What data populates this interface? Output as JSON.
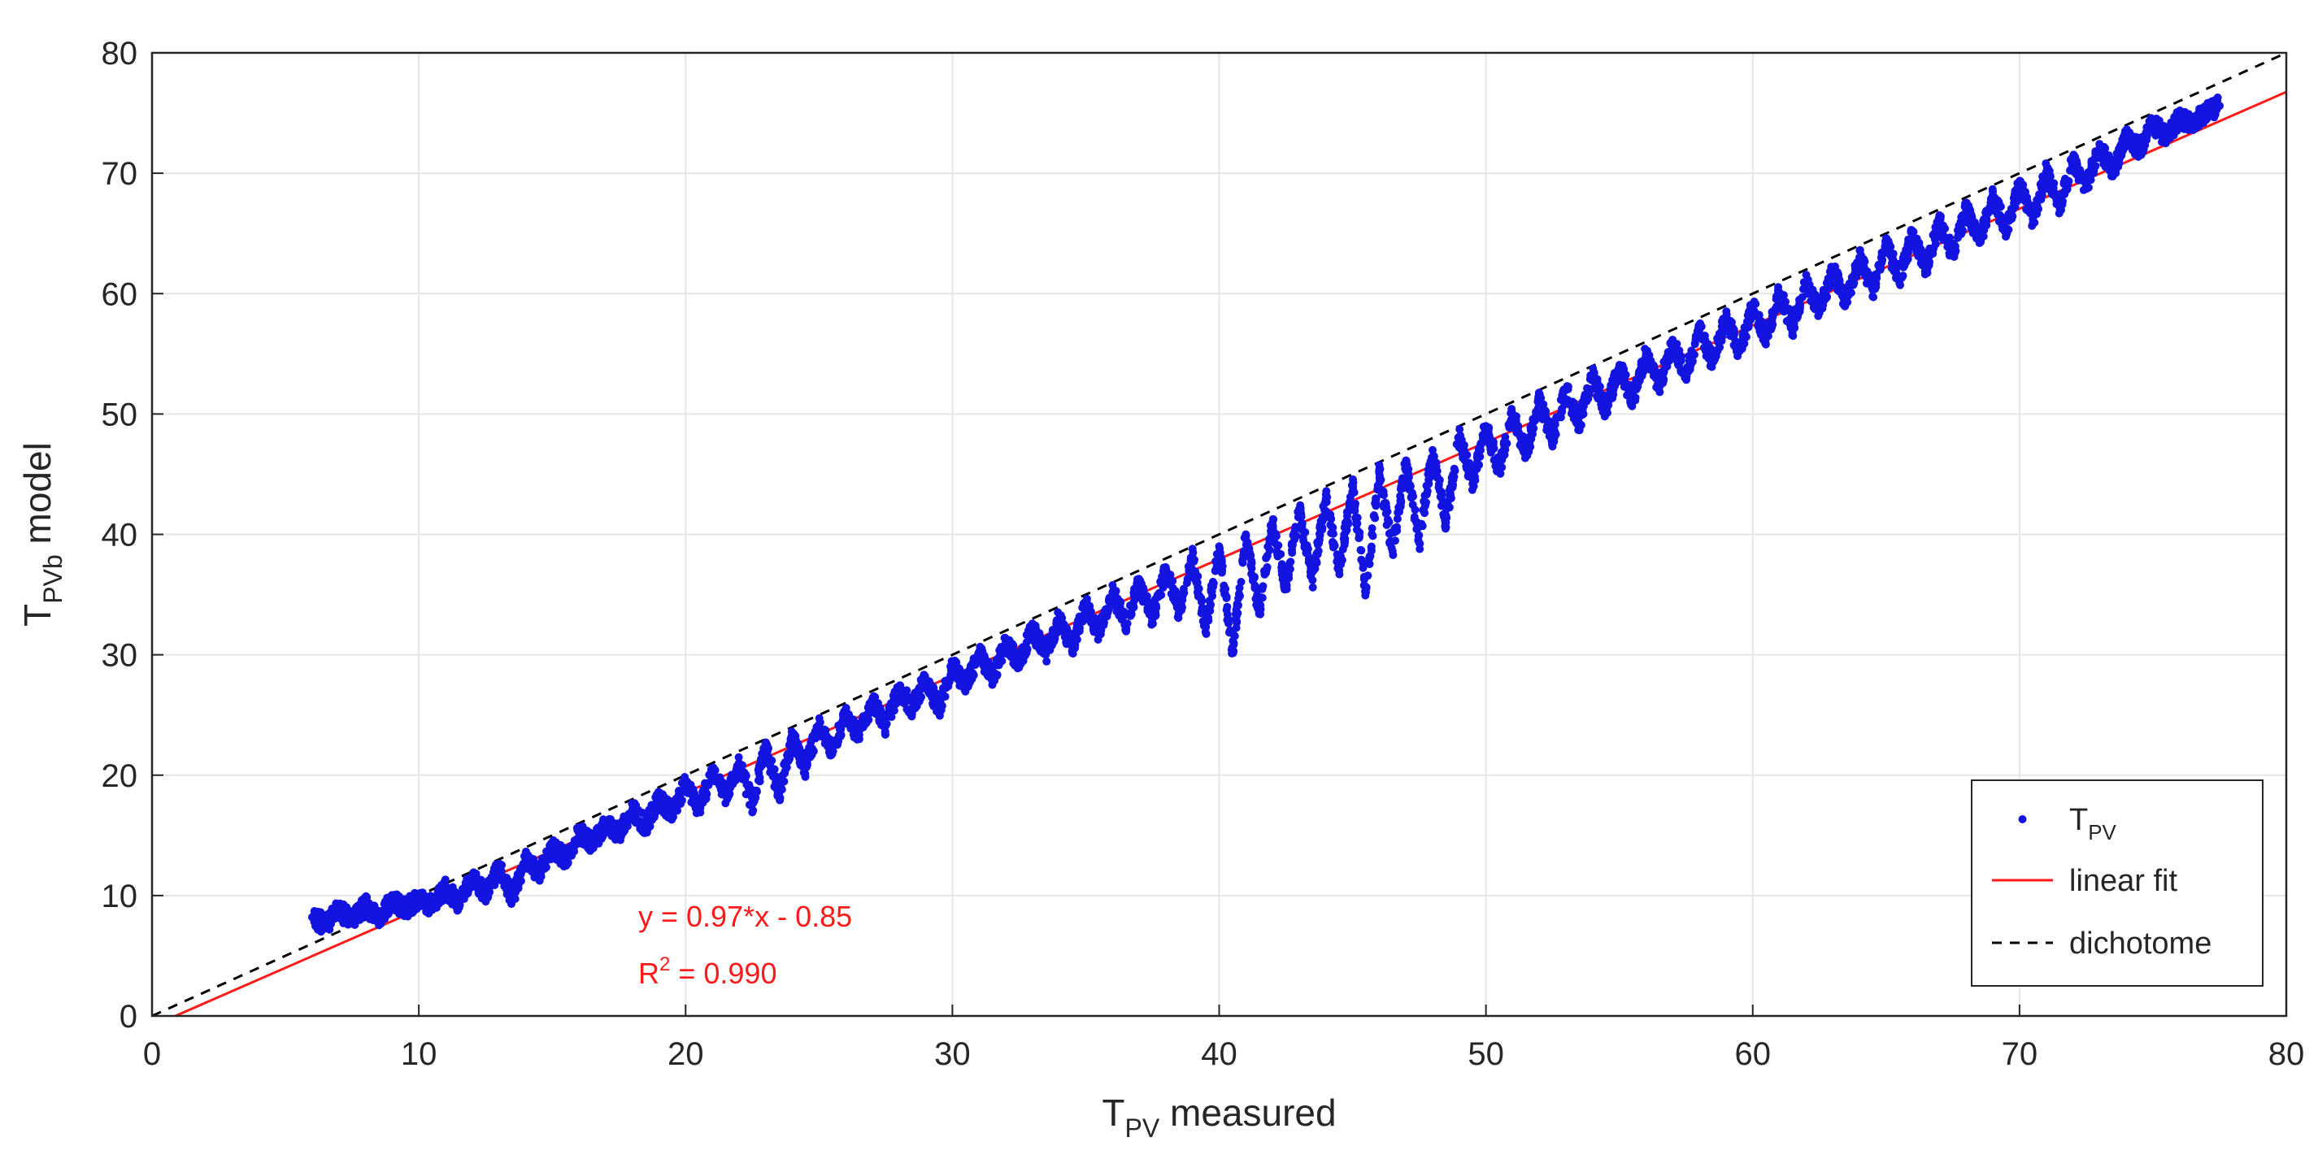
{
  "chart_data": {
    "type": "scatter",
    "xlabel": {
      "main": "T",
      "sub": "PV",
      "rest": " measured"
    },
    "ylabel": {
      "main": "T",
      "sub": "PVb",
      "rest": " model"
    },
    "xlim": [
      0,
      80
    ],
    "ylim": [
      0,
      80
    ],
    "xticks": [
      "0",
      "10",
      "20",
      "30",
      "40",
      "50",
      "60",
      "70",
      "80"
    ],
    "yticks": [
      "0",
      "10",
      "20",
      "30",
      "40",
      "50",
      "60",
      "70",
      "80"
    ],
    "grid": true,
    "legend_position": "bottom-right",
    "legend": [
      {
        "main": "T",
        "sub": "PV",
        "style": "marker"
      },
      {
        "main": "linear fit",
        "style": "solid"
      },
      {
        "main": "dichotome",
        "style": "dashed"
      }
    ],
    "annotations": {
      "equation": "y = 0.97*x - 0.85",
      "r2_prefix": "R",
      "r2_sup": "2",
      "r2_value": " = 0.990"
    },
    "fit": {
      "slope": 0.97,
      "intercept": -0.85,
      "r2": 0.99
    },
    "dichotome": {
      "slope": 1,
      "intercept": 0
    },
    "series": [
      {
        "name": "T_PV",
        "type": "scatter",
        "points": [
          [
            6.0,
            8.2
          ],
          [
            6.5,
            7.6
          ],
          [
            7.0,
            8.8
          ],
          [
            7.5,
            7.9
          ],
          [
            8.0,
            9.2
          ],
          [
            8.5,
            8.1
          ],
          [
            9.0,
            9.6
          ],
          [
            9.5,
            8.9
          ],
          [
            10.0,
            9.8
          ],
          [
            10.5,
            9.1
          ],
          [
            11.0,
            10.6
          ],
          [
            11.5,
            9.4
          ],
          [
            12.0,
            11.6
          ],
          [
            12.5,
            10.2
          ],
          [
            13.0,
            12.3
          ],
          [
            13.5,
            9.8
          ],
          [
            14.0,
            13.0
          ],
          [
            14.5,
            11.8
          ],
          [
            15.0,
            14.0
          ],
          [
            15.5,
            13.1
          ],
          [
            16.0,
            15.2
          ],
          [
            16.5,
            14.3
          ],
          [
            17.0,
            16.0
          ],
          [
            17.5,
            15.2
          ],
          [
            18.0,
            17.1
          ],
          [
            18.5,
            15.8
          ],
          [
            19.0,
            18.0
          ],
          [
            19.5,
            16.9
          ],
          [
            20.0,
            19.3
          ],
          [
            20.5,
            17.2
          ],
          [
            21.0,
            20.2
          ],
          [
            21.5,
            18.3
          ],
          [
            22.0,
            21.0
          ],
          [
            22.5,
            17.6
          ],
          [
            23.0,
            22.3
          ],
          [
            23.5,
            18.4
          ],
          [
            24.0,
            23.1
          ],
          [
            24.5,
            20.6
          ],
          [
            25.0,
            24.2
          ],
          [
            25.5,
            22.0
          ],
          [
            26.0,
            25.0
          ],
          [
            26.5,
            23.3
          ],
          [
            27.0,
            26.1
          ],
          [
            27.5,
            24.1
          ],
          [
            28.0,
            27.2
          ],
          [
            28.5,
            25.6
          ],
          [
            29.0,
            28.0
          ],
          [
            29.5,
            25.5
          ],
          [
            30.0,
            29.1
          ],
          [
            30.5,
            27.4
          ],
          [
            31.0,
            30.2
          ],
          [
            31.5,
            28.0
          ],
          [
            32.0,
            31.0
          ],
          [
            32.5,
            29.3
          ],
          [
            33.0,
            32.1
          ],
          [
            33.5,
            30.0
          ],
          [
            34.0,
            33.0
          ],
          [
            34.5,
            30.6
          ],
          [
            35.0,
            34.1
          ],
          [
            35.5,
            31.8
          ],
          [
            36.0,
            35.2
          ],
          [
            36.5,
            32.6
          ],
          [
            37.0,
            36.0
          ],
          [
            37.5,
            33.0
          ],
          [
            38.0,
            37.2
          ],
          [
            38.5,
            33.5
          ],
          [
            39.0,
            38.1
          ],
          [
            39.5,
            32.3
          ],
          [
            40.0,
            39.0
          ],
          [
            40.5,
            30.2
          ],
          [
            41.0,
            40.0
          ],
          [
            41.5,
            33.4
          ],
          [
            42.0,
            41.0
          ],
          [
            42.5,
            35.6
          ],
          [
            43.0,
            42.1
          ],
          [
            43.5,
            36.2
          ],
          [
            44.0,
            43.0
          ],
          [
            44.5,
            37.0
          ],
          [
            45.0,
            44.0
          ],
          [
            45.5,
            35.2
          ],
          [
            46.0,
            45.1
          ],
          [
            46.5,
            38.6
          ],
          [
            47.0,
            46.0
          ],
          [
            47.5,
            39.3
          ],
          [
            48.0,
            47.0
          ],
          [
            48.5,
            41.0
          ],
          [
            49.0,
            48.1
          ],
          [
            49.5,
            44.2
          ],
          [
            50.0,
            49.0
          ],
          [
            50.5,
            45.3
          ],
          [
            51.0,
            50.0
          ],
          [
            51.5,
            46.6
          ],
          [
            52.0,
            51.1
          ],
          [
            52.5,
            48.0
          ],
          [
            53.0,
            52.0
          ],
          [
            53.5,
            49.2
          ],
          [
            54.0,
            53.1
          ],
          [
            54.5,
            50.3
          ],
          [
            55.0,
            54.0
          ],
          [
            55.5,
            51.1
          ],
          [
            56.0,
            55.0
          ],
          [
            56.5,
            52.3
          ],
          [
            57.0,
            56.0
          ],
          [
            57.5,
            53.2
          ],
          [
            58.0,
            57.0
          ],
          [
            58.5,
            54.3
          ],
          [
            59.0,
            58.1
          ],
          [
            59.5,
            55.2
          ],
          [
            60.0,
            59.0
          ],
          [
            60.5,
            56.3
          ],
          [
            61.0,
            60.1
          ],
          [
            61.5,
            57.2
          ],
          [
            62.0,
            61.0
          ],
          [
            62.5,
            58.4
          ],
          [
            63.0,
            62.1
          ],
          [
            63.5,
            59.2
          ],
          [
            64.0,
            63.0
          ],
          [
            64.5,
            60.3
          ],
          [
            65.0,
            64.1
          ],
          [
            65.5,
            61.2
          ],
          [
            66.0,
            65.0
          ],
          [
            66.5,
            62.1
          ],
          [
            67.0,
            66.0
          ],
          [
            67.5,
            63.3
          ],
          [
            68.0,
            67.0
          ],
          [
            68.5,
            64.2
          ],
          [
            69.0,
            68.1
          ],
          [
            69.5,
            65.3
          ],
          [
            70.0,
            69.0
          ],
          [
            70.5,
            66.2
          ],
          [
            71.0,
            70.1
          ],
          [
            71.5,
            67.3
          ],
          [
            72.0,
            71.0
          ],
          [
            72.5,
            69.0
          ],
          [
            73.0,
            72.1
          ],
          [
            73.5,
            70.2
          ],
          [
            74.0,
            73.0
          ],
          [
            74.5,
            72.0
          ],
          [
            75.0,
            74.1
          ],
          [
            75.5,
            73.0
          ],
          [
            76.0,
            74.6
          ],
          [
            76.5,
            74.0
          ],
          [
            77.0,
            75.2
          ],
          [
            77.5,
            75.6
          ]
        ]
      }
    ]
  },
  "colors": {
    "scatter": "#1414e0",
    "fit": "#ff1a1a",
    "dichotome": "#000000",
    "annotation": "#ff1a1a",
    "grid": "#e6e6e6",
    "axis": "#262626",
    "tick_text": "#262626"
  }
}
